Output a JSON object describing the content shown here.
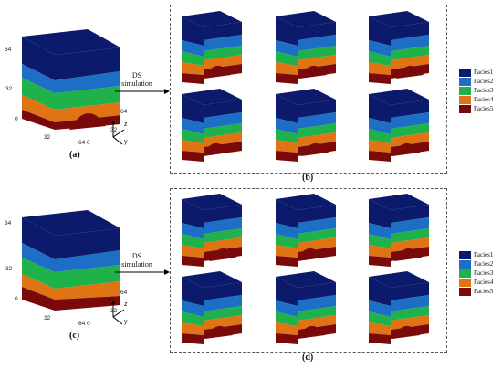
{
  "arrow_label_top": [
    "DS",
    "simulation"
  ],
  "arrow_label_bottom": [
    "DS",
    "simulation"
  ],
  "panel_labels": {
    "a": "(a)",
    "b": "(b)",
    "c": "(c)",
    "d": "(d)"
  },
  "legend_top": [
    "Facies1",
    "Facies2",
    "Facies3",
    "Facies4",
    "Facies5"
  ],
  "legend_bottom": [
    "Facies1",
    "Facies2",
    "Facies3",
    "Facies4",
    "Facies5"
  ],
  "facies_colors_top": [
    "#0b1a6b",
    "#1c6fc4",
    "#1fb14a",
    "#e07414",
    "#7a0a0a"
  ],
  "facies_colors_bottom": [
    "#0b1a6b",
    "#1c6fc4",
    "#1fb14a",
    "#e07414",
    "#7a0a0a"
  ],
  "axis_ticks_top": {
    "z_64": "64",
    "z_32": "32",
    "origin": "0",
    "x_32": "32",
    "x_64": "64",
    "y_0": "0",
    "y_32": "32",
    "y_64": "64"
  },
  "axis_ticks_bottom": {
    "z_64": "64",
    "z_32": "32",
    "origin": "0",
    "x_32": "32",
    "x_64": "64",
    "y_0": "0",
    "y_32": "32",
    "y_64": "64"
  },
  "axes_letters": {
    "x": "x",
    "y": "y",
    "z": "z"
  }
}
